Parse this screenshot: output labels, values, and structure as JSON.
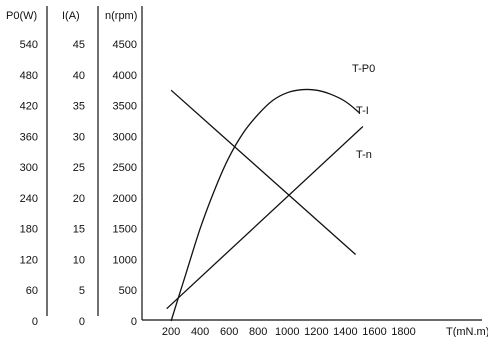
{
  "chart_data": {
    "type": "line",
    "x_axis": {
      "label": "T(mN.m)",
      "ticks": [
        200,
        400,
        600,
        800,
        1000,
        1200,
        1400,
        1600,
        1800
      ],
      "range": [
        0,
        1800
      ]
    },
    "y_axes": [
      {
        "id": "P0",
        "label": "P0(W)",
        "ticks": [
          0,
          60,
          120,
          180,
          240,
          300,
          360,
          420,
          480,
          540
        ],
        "range": [
          0,
          540
        ]
      },
      {
        "id": "I",
        "label": "I(A)",
        "ticks": [
          0,
          5,
          10,
          15,
          20,
          25,
          30,
          35,
          40,
          45
        ],
        "range": [
          0,
          45
        ]
      },
      {
        "id": "n",
        "label": "n(rpm)",
        "ticks": [
          0,
          500,
          1000,
          1500,
          2000,
          2500,
          3000,
          3500,
          4000,
          4500
        ],
        "range": [
          0,
          4500
        ]
      }
    ],
    "series": [
      {
        "name": "T-P0",
        "axis": "P0",
        "shape": "curve",
        "x": [
          200,
          300,
          400,
          500,
          600,
          700,
          800,
          900,
          1000,
          1100,
          1200,
          1300,
          1400,
          1500
        ],
        "y": [
          0,
          90,
          180,
          256,
          320,
          368,
          403,
          430,
          445,
          451,
          450,
          442,
          428,
          405
        ]
      },
      {
        "name": "T-I",
        "axis": "I",
        "x": [
          200,
          1470
        ],
        "y": [
          37.5,
          10.8
        ]
      },
      {
        "name": "T-n",
        "axis": "n",
        "x": [
          170,
          1520
        ],
        "y": [
          200,
          3160
        ]
      }
    ],
    "grid": false,
    "legend": "none"
  }
}
